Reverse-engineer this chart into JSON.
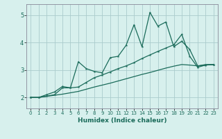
{
  "xlabel": "Humidex (Indice chaleur)",
  "bg_color": "#d7f0ed",
  "grid_color": "#aacccc",
  "line_color": "#1a6b5a",
  "xlim": [
    -0.5,
    23.5
  ],
  "ylim": [
    1.6,
    5.4
  ],
  "yticks": [
    2,
    3,
    4,
    5
  ],
  "xticks": [
    0,
    1,
    2,
    3,
    4,
    5,
    6,
    7,
    8,
    9,
    10,
    11,
    12,
    13,
    14,
    15,
    16,
    17,
    18,
    19,
    20,
    21,
    22,
    23
  ],
  "line1_x": [
    0,
    1,
    2,
    3,
    4,
    5,
    6,
    7,
    8,
    9,
    10,
    11,
    12,
    13,
    14,
    15,
    16,
    17,
    18,
    19,
    20,
    21,
    22,
    23
  ],
  "line1_y": [
    2.0,
    2.0,
    2.1,
    2.2,
    2.4,
    2.35,
    3.3,
    3.05,
    2.95,
    2.9,
    3.45,
    3.5,
    3.9,
    4.65,
    3.85,
    5.1,
    4.6,
    4.75,
    3.85,
    4.05,
    3.75,
    3.15,
    3.2,
    3.2
  ],
  "line2_x": [
    0,
    1,
    2,
    3,
    4,
    5,
    6,
    7,
    8,
    9,
    10,
    11,
    12,
    13,
    14,
    15,
    16,
    17,
    18,
    19,
    20,
    21,
    22,
    23
  ],
  "line2_y": [
    2.0,
    2.0,
    2.05,
    2.1,
    2.35,
    2.35,
    2.38,
    2.55,
    2.72,
    2.82,
    2.93,
    3.05,
    3.15,
    3.27,
    3.42,
    3.55,
    3.68,
    3.8,
    3.92,
    4.3,
    3.5,
    3.1,
    3.18,
    3.2
  ],
  "line3_x": [
    0,
    1,
    2,
    3,
    4,
    5,
    6,
    7,
    8,
    9,
    10,
    11,
    12,
    13,
    14,
    15,
    16,
    17,
    18,
    19,
    20,
    21,
    22,
    23
  ],
  "line3_y": [
    2.0,
    2.0,
    2.04,
    2.08,
    2.12,
    2.17,
    2.22,
    2.3,
    2.38,
    2.45,
    2.52,
    2.6,
    2.68,
    2.76,
    2.84,
    2.91,
    2.99,
    3.07,
    3.14,
    3.2,
    3.18,
    3.15,
    3.18,
    3.2
  ]
}
